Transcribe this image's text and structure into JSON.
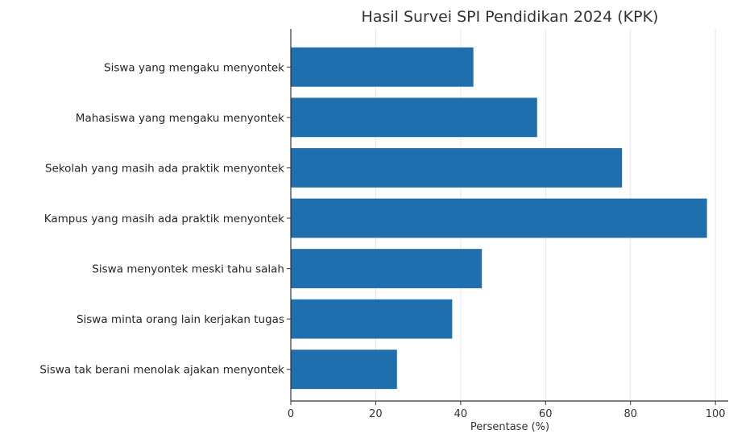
{
  "chart_data": {
    "type": "bar",
    "orientation": "horizontal",
    "title": "Hasil Survei SPI Pendidikan 2024 (KPK)",
    "xlabel": "Persentase (%)",
    "ylabel": "",
    "categories": [
      "Siswa yang mengaku menyontek",
      "Mahasiswa yang mengaku menyontek",
      "Sekolah yang masih ada praktik menyontek",
      "Kampus yang masih ada praktik menyontek",
      "Siswa menyontek meski tahu salah",
      "Siswa minta orang lain kerjakan tugas",
      "Siswa tak berani menolak ajakan menyontek"
    ],
    "values": [
      43,
      58,
      78,
      98,
      45,
      38,
      25
    ],
    "xlim": [
      0,
      103
    ],
    "xticks": [
      "0",
      "20",
      "40",
      "60",
      "80",
      "100"
    ],
    "grid": true,
    "bar_color": "#1f6fae"
  }
}
